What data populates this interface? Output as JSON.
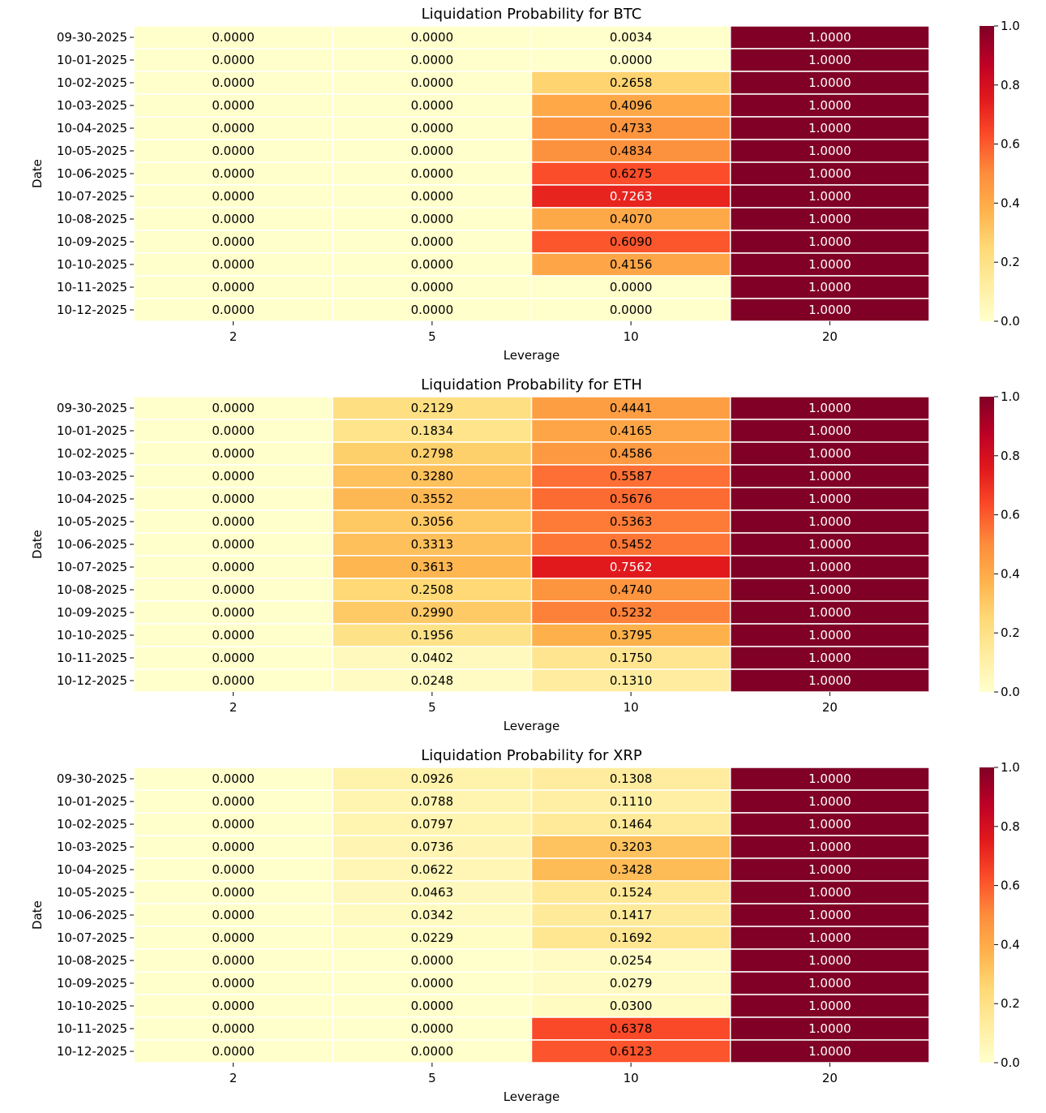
{
  "colorbar": {
    "ticks": [
      "0.0",
      "0.2",
      "0.4",
      "0.6",
      "0.8",
      "1.0"
    ],
    "vmin": 0,
    "vmax": 1
  },
  "colormap": {
    "name": "YlOrRd",
    "stops": [
      "#ffffcc",
      "#ffeda0",
      "#fed976",
      "#feb24c",
      "#fd8d3c",
      "#fc4e2a",
      "#e31a1c",
      "#bd0026",
      "#800026"
    ],
    "dark_text_color": "#000000",
    "light_text_color": "#ffffff"
  },
  "chart_data": [
    {
      "type": "heatmap",
      "title": "Liquidation Probability for BTC",
      "xlabel": "Leverage",
      "ylabel": "Date",
      "x_categories": [
        "2",
        "5",
        "10",
        "20"
      ],
      "y_categories": [
        "09-30-2025",
        "10-01-2025",
        "10-02-2025",
        "10-03-2025",
        "10-04-2025",
        "10-05-2025",
        "10-06-2025",
        "10-07-2025",
        "10-08-2025",
        "10-09-2025",
        "10-10-2025",
        "10-11-2025",
        "10-12-2025"
      ],
      "values": [
        [
          0.0,
          0.0,
          0.0034,
          1.0
        ],
        [
          0.0,
          0.0,
          0.0,
          1.0
        ],
        [
          0.0,
          0.0,
          0.2658,
          1.0
        ],
        [
          0.0,
          0.0,
          0.4096,
          1.0
        ],
        [
          0.0,
          0.0,
          0.4733,
          1.0
        ],
        [
          0.0,
          0.0,
          0.4834,
          1.0
        ],
        [
          0.0,
          0.0,
          0.6275,
          1.0
        ],
        [
          0.0,
          0.0,
          0.7263,
          1.0
        ],
        [
          0.0,
          0.0,
          0.407,
          1.0
        ],
        [
          0.0,
          0.0,
          0.609,
          1.0
        ],
        [
          0.0,
          0.0,
          0.4156,
          1.0
        ],
        [
          0.0,
          0.0,
          0.0,
          1.0
        ],
        [
          0.0,
          0.0,
          0.0,
          1.0
        ]
      ]
    },
    {
      "type": "heatmap",
      "title": "Liquidation Probability for ETH",
      "xlabel": "Leverage",
      "ylabel": "Date",
      "x_categories": [
        "2",
        "5",
        "10",
        "20"
      ],
      "y_categories": [
        "09-30-2025",
        "10-01-2025",
        "10-02-2025",
        "10-03-2025",
        "10-04-2025",
        "10-05-2025",
        "10-06-2025",
        "10-07-2025",
        "10-08-2025",
        "10-09-2025",
        "10-10-2025",
        "10-11-2025",
        "10-12-2025"
      ],
      "values": [
        [
          0.0,
          0.2129,
          0.4441,
          1.0
        ],
        [
          0.0,
          0.1834,
          0.4165,
          1.0
        ],
        [
          0.0,
          0.2798,
          0.4586,
          1.0
        ],
        [
          0.0,
          0.328,
          0.5587,
          1.0
        ],
        [
          0.0,
          0.3552,
          0.5676,
          1.0
        ],
        [
          0.0,
          0.3056,
          0.5363,
          1.0
        ],
        [
          0.0,
          0.3313,
          0.5452,
          1.0
        ],
        [
          0.0,
          0.3613,
          0.7562,
          1.0
        ],
        [
          0.0,
          0.2508,
          0.474,
          1.0
        ],
        [
          0.0,
          0.299,
          0.5232,
          1.0
        ],
        [
          0.0,
          0.1956,
          0.3795,
          1.0
        ],
        [
          0.0,
          0.0402,
          0.175,
          1.0
        ],
        [
          0.0,
          0.0248,
          0.131,
          1.0
        ]
      ]
    },
    {
      "type": "heatmap",
      "title": "Liquidation Probability for XRP",
      "xlabel": "Leverage",
      "ylabel": "Date",
      "x_categories": [
        "2",
        "5",
        "10",
        "20"
      ],
      "y_categories": [
        "09-30-2025",
        "10-01-2025",
        "10-02-2025",
        "10-03-2025",
        "10-04-2025",
        "10-05-2025",
        "10-06-2025",
        "10-07-2025",
        "10-08-2025",
        "10-09-2025",
        "10-10-2025",
        "10-11-2025",
        "10-12-2025"
      ],
      "values": [
        [
          0.0,
          0.0926,
          0.1308,
          1.0
        ],
        [
          0.0,
          0.0788,
          0.111,
          1.0
        ],
        [
          0.0,
          0.0797,
          0.1464,
          1.0
        ],
        [
          0.0,
          0.0736,
          0.3203,
          1.0
        ],
        [
          0.0,
          0.0622,
          0.3428,
          1.0
        ],
        [
          0.0,
          0.0463,
          0.1524,
          1.0
        ],
        [
          0.0,
          0.0342,
          0.1417,
          1.0
        ],
        [
          0.0,
          0.0229,
          0.1692,
          1.0
        ],
        [
          0.0,
          0.0,
          0.0254,
          1.0
        ],
        [
          0.0,
          0.0,
          0.0279,
          1.0
        ],
        [
          0.0,
          0.0,
          0.03,
          1.0
        ],
        [
          0.0,
          0.0,
          0.6378,
          1.0
        ],
        [
          0.0,
          0.0,
          0.6123,
          1.0
        ]
      ]
    }
  ]
}
